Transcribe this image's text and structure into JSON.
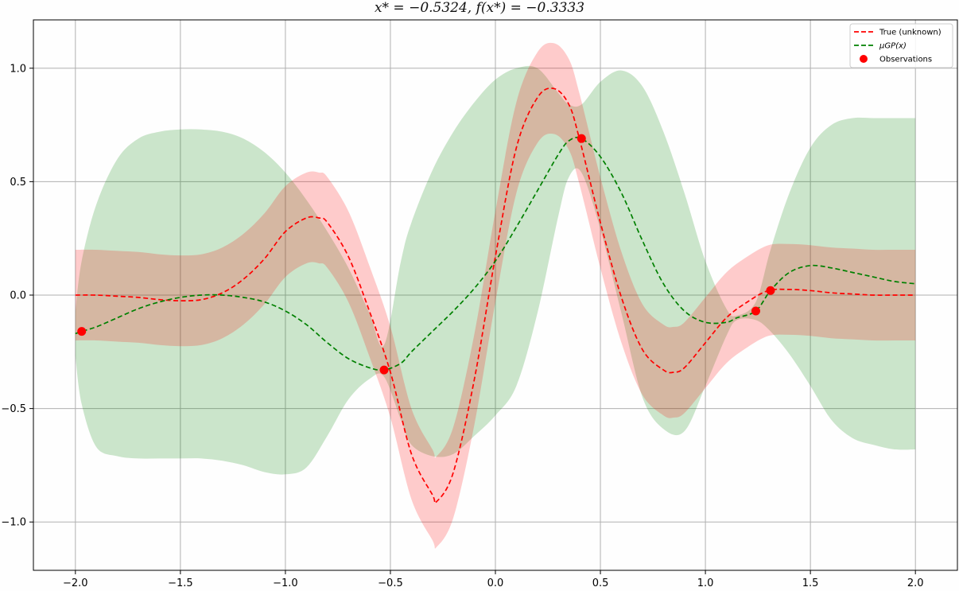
{
  "chart_data": {
    "type": "line",
    "title": "x* = −0.5324, f(x*) = −0.3333",
    "xlim": [
      -2.2,
      2.2
    ],
    "ylim": [
      -1.213,
      1.213
    ],
    "grid": true,
    "legend_position": "top-right",
    "x_ticks": [
      -2.0,
      -1.5,
      -1.0,
      -0.5,
      0.0,
      0.5,
      1.0,
      1.5,
      2.0
    ],
    "x_tick_labels": [
      "−2.0",
      "−1.5",
      "−1.0",
      "−0.5",
      "0.0",
      "0.5",
      "1.0",
      "1.5",
      "2.0"
    ],
    "y_ticks": [
      -1.0,
      -0.5,
      0.0,
      0.5,
      1.0
    ],
    "y_tick_labels": [
      "−1.0",
      "−0.5",
      "0.0",
      "0.5",
      "1.0"
    ],
    "series": [
      {
        "name": "True (unknown)",
        "style": "dashed",
        "color": "#ff0000",
        "band_color": "#ff0000",
        "band_opacity": 0.2,
        "band_halfwidth": 0.2,
        "x": [
          -2.0,
          -1.9,
          -1.8,
          -1.7,
          -1.6,
          -1.5,
          -1.4,
          -1.3,
          -1.2,
          -1.1,
          -1.0,
          -0.9,
          -0.84,
          -0.8,
          -0.7,
          -0.6,
          -0.5,
          -0.4,
          -0.3,
          -0.28,
          -0.2,
          -0.1,
          0.0,
          0.1,
          0.2,
          0.28,
          0.35,
          0.4,
          0.5,
          0.6,
          0.7,
          0.8,
          0.85,
          0.9,
          1.0,
          1.1,
          1.2,
          1.3,
          1.4,
          1.5,
          1.6,
          1.7,
          1.8,
          1.9,
          2.0
        ],
        "y": [
          0.0,
          0.0,
          -0.005,
          -0.01,
          -0.02,
          -0.025,
          -0.02,
          0.01,
          0.07,
          0.16,
          0.28,
          0.34,
          0.34,
          0.32,
          0.17,
          -0.07,
          -0.34,
          -0.7,
          -0.88,
          -0.91,
          -0.78,
          -0.37,
          0.17,
          0.65,
          0.87,
          0.91,
          0.84,
          0.69,
          0.32,
          -0.01,
          -0.24,
          -0.33,
          -0.34,
          -0.32,
          -0.21,
          -0.1,
          -0.03,
          0.02,
          0.025,
          0.02,
          0.01,
          0.005,
          0.0,
          0.0,
          0.0
        ]
      },
      {
        "name": "μGP(x)",
        "style": "dashed",
        "color": "#008000",
        "band_color": "#008000",
        "band_opacity": 0.2,
        "x": [
          -2.0,
          -1.97,
          -1.9,
          -1.8,
          -1.7,
          -1.6,
          -1.5,
          -1.4,
          -1.3,
          -1.2,
          -1.1,
          -1.0,
          -0.9,
          -0.8,
          -0.7,
          -0.6,
          -0.53,
          -0.45,
          -0.4,
          -0.3,
          -0.2,
          -0.1,
          0.0,
          0.1,
          0.2,
          0.3,
          0.35,
          0.41,
          0.5,
          0.6,
          0.7,
          0.8,
          0.9,
          1.0,
          1.1,
          1.15,
          1.24,
          1.31,
          1.4,
          1.5,
          1.6,
          1.7,
          1.8,
          1.9,
          2.0
        ],
        "y": [
          -0.17,
          -0.16,
          -0.14,
          -0.1,
          -0.06,
          -0.03,
          -0.01,
          0.0,
          0.0,
          -0.01,
          -0.03,
          -0.07,
          -0.13,
          -0.21,
          -0.28,
          -0.32,
          -0.33,
          -0.3,
          -0.25,
          -0.16,
          -0.07,
          0.03,
          0.15,
          0.3,
          0.46,
          0.62,
          0.68,
          0.69,
          0.61,
          0.45,
          0.24,
          0.05,
          -0.07,
          -0.12,
          -0.12,
          -0.1,
          -0.07,
          0.02,
          0.1,
          0.13,
          0.12,
          0.1,
          0.08,
          0.06,
          0.05
        ],
        "band_upper": [
          -0.07,
          0.15,
          0.4,
          0.6,
          0.69,
          0.72,
          0.73,
          0.73,
          0.72,
          0.69,
          0.63,
          0.54,
          0.42,
          0.28,
          0.12,
          -0.08,
          -0.22,
          0.15,
          0.32,
          0.55,
          0.72,
          0.85,
          0.95,
          1.0,
          1.0,
          0.89,
          0.84,
          0.84,
          0.94,
          0.99,
          0.92,
          0.72,
          0.45,
          0.15,
          -0.06,
          -0.09,
          -0.03,
          0.2,
          0.45,
          0.65,
          0.75,
          0.78,
          0.78,
          0.78,
          0.78
        ],
        "band_lower": [
          -0.27,
          -0.48,
          -0.67,
          -0.71,
          -0.72,
          -0.72,
          -0.72,
          -0.72,
          -0.73,
          -0.75,
          -0.78,
          -0.79,
          -0.76,
          -0.62,
          -0.46,
          -0.37,
          -0.36,
          -0.55,
          -0.66,
          -0.71,
          -0.7,
          -0.62,
          -0.53,
          -0.4,
          -0.08,
          0.35,
          0.52,
          0.54,
          0.29,
          -0.08,
          -0.45,
          -0.59,
          -0.6,
          -0.4,
          -0.18,
          -0.11,
          -0.11,
          -0.16,
          -0.26,
          -0.4,
          -0.55,
          -0.63,
          -0.66,
          -0.68,
          -0.68
        ]
      },
      {
        "name": "Observations",
        "style": "markers",
        "color": "#ff0000",
        "x": [
          -1.97,
          -0.53,
          0.41,
          1.24,
          1.31
        ],
        "y": [
          -0.16,
          -0.33,
          0.69,
          -0.07,
          0.02
        ]
      }
    ]
  },
  "legend": {
    "items": [
      {
        "label": "True (unknown)",
        "kind": "dashed",
        "color": "#ff0000"
      },
      {
        "label": "μGP(x)",
        "kind": "dashed",
        "color": "#008000"
      },
      {
        "label": "Observations",
        "kind": "dot",
        "color": "#ff0000"
      }
    ]
  }
}
